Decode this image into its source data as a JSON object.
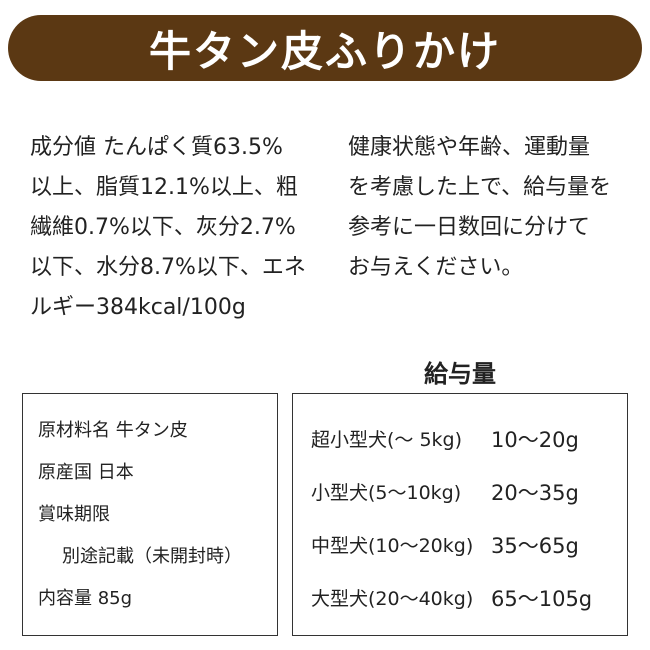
{
  "header": {
    "title": "牛タン皮ふりかけ"
  },
  "paragraphs": {
    "left": [
      "成分値 たんぱく質63.5%",
      "以上、脂質12.1%以上、粗",
      "繊維0.7%以下、灰分2.7%",
      "以下、水分8.7%以下、エネ",
      "ルギー384kcal/100g"
    ],
    "right": [
      "健康状態や年齢、運動量",
      "を考慮した上で、給与量を",
      "参考に一日数回に分けて",
      "お与えください。"
    ]
  },
  "info_box": {
    "lines": [
      "原材料名 牛タン皮",
      "原産国 日本",
      "賞味期限",
      "別途記載（未開封時）",
      "内容量 85g"
    ]
  },
  "feeding_table": {
    "title": "給与量",
    "rows": [
      [
        "超小型犬(～ 5kg)",
        "10～20g"
      ],
      [
        "小型犬(5～10kg)",
        "20～35g"
      ],
      [
        "中型犬(10～20kg)",
        "35～65g"
      ],
      [
        "大型犬(20～40kg)",
        "65～105g"
      ]
    ]
  }
}
